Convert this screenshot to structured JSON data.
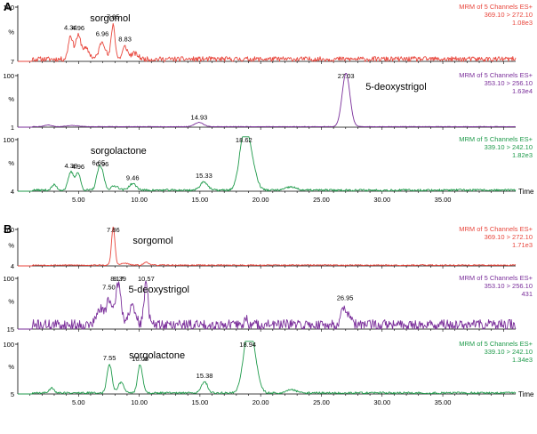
{
  "chart_data": {
    "type": "line",
    "x_range": [
      0,
      41
    ],
    "x_ticks": [
      5,
      10,
      15,
      20,
      25,
      30,
      35
    ],
    "x_tick_labels": [
      "5.00",
      "10.00",
      "15.00",
      "20.00",
      "25.00",
      "30.00",
      "35.00"
    ],
    "xlabel": "Time",
    "colors": {
      "red": "#e8463c",
      "purple": "#7a2e9a",
      "green": "#1e9a4a"
    },
    "panels": [
      {
        "label": "A",
        "traces": [
          {
            "color": "red",
            "header": [
              "MRM of 5 Channels ES+",
              "369.10 > 272.10",
              "1.08e3"
            ],
            "name": "sorgomol",
            "y_top": "100",
            "y_mid": "%",
            "y_bottom": "7",
            "noise": 0.045,
            "baseline": 0.04,
            "seed": 11,
            "peaks": [
              [
                4.34,
                0.42,
                0.18
              ],
              [
                4.96,
                0.4,
                0.22
              ],
              [
                6.96,
                0.32,
                0.25
              ],
              [
                7.85,
                0.62,
                0.16
              ],
              [
                8.83,
                0.22,
                0.2
              ],
              [
                5.6,
                0.18,
                0.3
              ],
              [
                9.6,
                0.1,
                0.3
              ]
            ],
            "labels": [
              [
                4.34,
                "4.34"
              ],
              [
                4.96,
                "4.96"
              ],
              [
                6.96,
                "6.96"
              ],
              [
                7.85,
                "7.85"
              ],
              [
                8.83,
                "8.83"
              ]
            ]
          },
          {
            "color": "purple",
            "header": [
              "MRM of 5 Channels ES+",
              "353.10 > 256.10",
              "1.63e4"
            ],
            "name": "5-deoxystrigol",
            "y_top": "100",
            "y_mid": "%",
            "y_bottom": "1",
            "noise": 0.004,
            "baseline": 0.01,
            "seed": 23,
            "peaks": [
              [
                27.03,
                1.0,
                0.32
              ],
              [
                14.93,
                0.08,
                0.35
              ],
              [
                2.5,
                0.03,
                0.3
              ],
              [
                4.5,
                0.02,
                0.5
              ]
            ],
            "labels": [
              [
                27.03,
                "27.03"
              ],
              [
                14.93,
                "14.93"
              ]
            ]
          },
          {
            "color": "green",
            "header": [
              "MRM of 5 Channels ES+",
              "339.10 > 242.10",
              "1.82e3"
            ],
            "name": "sorgolactone",
            "y_top": "100",
            "y_mid": "%",
            "y_bottom": "4",
            "noise": 0.02,
            "baseline": 0.02,
            "seed": 37,
            "peaks": [
              [
                4.38,
                0.34,
                0.22
              ],
              [
                4.96,
                0.32,
                0.2
              ],
              [
                6.65,
                0.32,
                0.2
              ],
              [
                6.96,
                0.28,
                0.2
              ],
              [
                9.46,
                0.12,
                0.3
              ],
              [
                15.33,
                0.16,
                0.3
              ],
              [
                18.62,
                0.98,
                0.38
              ],
              [
                19.2,
                0.5,
                0.4
              ],
              [
                22.5,
                0.06,
                0.4
              ],
              [
                3.0,
                0.1,
                0.2
              ],
              [
                8.0,
                0.08,
                0.3
              ]
            ],
            "labels": [
              [
                4.38,
                "4.38"
              ],
              [
                4.96,
                "4.96"
              ],
              [
                6.65,
                "6.65"
              ],
              [
                6.96,
                "6.96"
              ],
              [
                9.46,
                "9.46"
              ],
              [
                15.33,
                "15.33"
              ],
              [
                18.62,
                "18.62"
              ]
            ]
          }
        ]
      },
      {
        "label": "B",
        "traces": [
          {
            "color": "red",
            "header": [
              "MRM of 5 Channels ES+",
              "369.10 > 272.10",
              "1.71e3"
            ],
            "name": "sorgomol",
            "y_top": "100",
            "y_mid": "%",
            "y_bottom": "4",
            "noise": 0.015,
            "baseline": 0.02,
            "seed": 53,
            "peaks": [
              [
                7.86,
                1.0,
                0.14
              ],
              [
                10.6,
                0.08,
                0.2
              ],
              [
                8.8,
                0.05,
                0.3
              ]
            ],
            "labels": [
              [
                7.86,
                "7.86"
              ]
            ]
          },
          {
            "color": "purple",
            "header": [
              "MRM of 5 Channels ES+",
              "353.10 > 256.10",
              "431"
            ],
            "name": "5-deoxystrigol",
            "y_top": "100",
            "y_mid": "%",
            "y_bottom": "15",
            "noise": 0.1,
            "baseline": 0.08,
            "seed": 71,
            "peaks": [
              [
                7.5,
                0.5,
                0.2
              ],
              [
                8.17,
                0.5,
                0.2
              ],
              [
                8.39,
                0.42,
                0.2
              ],
              [
                10.57,
                0.85,
                0.16
              ],
              [
                26.95,
                0.32,
                0.3
              ],
              [
                6.8,
                0.3,
                0.3
              ],
              [
                9.4,
                0.32,
                0.3
              ],
              [
                18.8,
                0.12,
                0.12
              ]
            ],
            "labels": [
              [
                7.5,
                "7.50"
              ],
              [
                8.17,
                "8.17"
              ],
              [
                8.39,
                "8.39"
              ],
              [
                10.57,
                "10.57"
              ],
              [
                26.95,
                "26.95"
              ]
            ]
          },
          {
            "color": "green",
            "header": [
              "MRM of 5 Channels ES+",
              "339.10 > 242.10",
              "1.34e3"
            ],
            "name": "sorgolactone",
            "y_top": "100",
            "y_mid": "%",
            "y_bottom": "5",
            "noise": 0.02,
            "baseline": 0.02,
            "seed": 89,
            "peaks": [
              [
                7.55,
                0.56,
                0.2
              ],
              [
                10.08,
                0.55,
                0.2
              ],
              [
                15.38,
                0.22,
                0.25
              ],
              [
                18.94,
                0.98,
                0.4
              ],
              [
                19.4,
                0.5,
                0.4
              ],
              [
                8.5,
                0.2,
                0.25
              ],
              [
                2.8,
                0.1,
                0.2
              ],
              [
                22.6,
                0.06,
                0.4
              ]
            ],
            "labels": [
              [
                7.55,
                "7.55"
              ],
              [
                10.08,
                "10.08"
              ],
              [
                15.38,
                "15.38"
              ],
              [
                18.94,
                "18.94"
              ]
            ]
          }
        ]
      }
    ]
  }
}
